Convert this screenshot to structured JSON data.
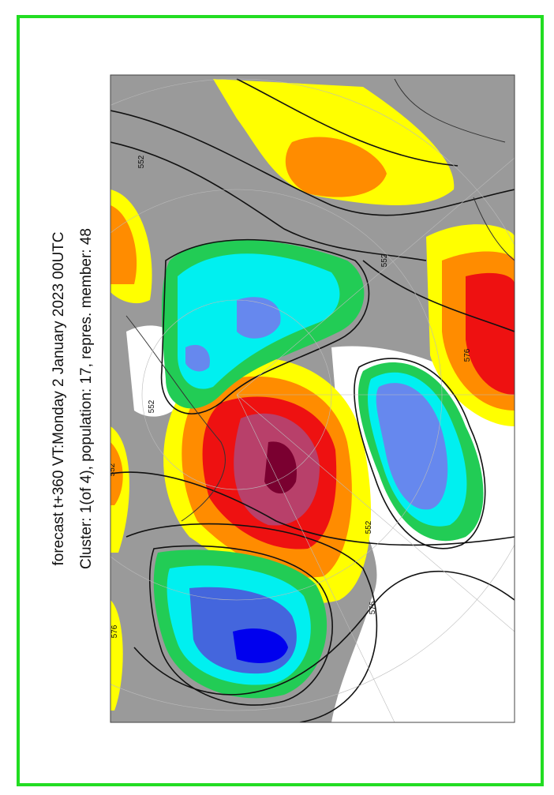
{
  "map": {
    "title": "forecast t+360 VT:Monday 2 January 2023 00UTC",
    "subtitle": "Cluster: 1(of 4), population: 17, repres. member: 48",
    "contour_labels": [
      "552",
      "552",
      "576",
      "552",
      "552",
      "552",
      "576",
      "576"
    ]
  }
}
